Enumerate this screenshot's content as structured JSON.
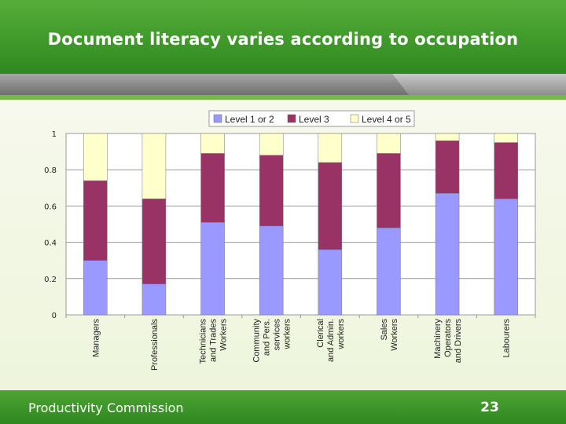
{
  "slide": {
    "title": "Document literacy varies according to occupation",
    "footer": "Productivity Commission",
    "page_number": "23"
  },
  "chart_data": {
    "type": "bar",
    "stacked": true,
    "categories": [
      "Managers",
      "Professionals",
      "Technicians and Trades Workers",
      "Community and Pers. services workers",
      "Clerical and Admin. workers",
      "Sales Workers",
      "Machinery Operators and Drivers",
      "Labourers"
    ],
    "series": [
      {
        "name": "Level 1 or 2",
        "color": "#9999ff",
        "values": [
          0.3,
          0.17,
          0.51,
          0.49,
          0.36,
          0.48,
          0.67,
          0.64
        ]
      },
      {
        "name": "Level 3",
        "color": "#993366",
        "values": [
          0.44,
          0.47,
          0.38,
          0.39,
          0.48,
          0.41,
          0.29,
          0.31
        ]
      },
      {
        "name": "Level 4 or 5",
        "color": "#ffffcc",
        "values": [
          0.26,
          0.36,
          0.11,
          0.12,
          0.16,
          0.11,
          0.04,
          0.05
        ]
      }
    ],
    "yticks": [
      "0",
      "0.2",
      "0.4",
      "0.6",
      "0.8",
      "1"
    ],
    "ylim": [
      0,
      1
    ],
    "grid": true,
    "legend": "top-center"
  }
}
